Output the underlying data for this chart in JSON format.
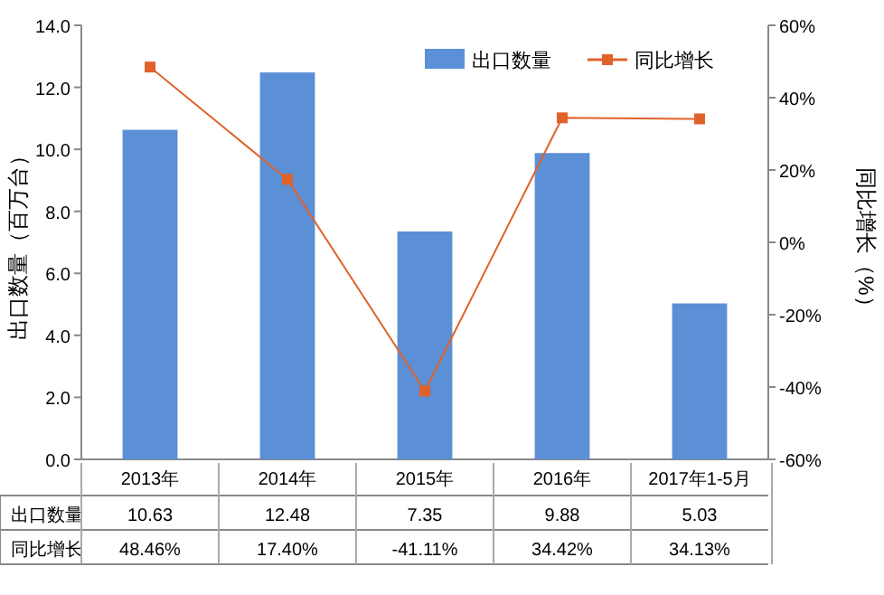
{
  "chart_data": {
    "type": "bar",
    "categories": [
      "2013年",
      "2014年",
      "2015年",
      "2016年",
      "2017年1-5月"
    ],
    "ylabel": "出口数量（百万台）",
    "y2label": "同比增长（%）",
    "ylim": [
      0,
      14
    ],
    "yticks": [
      {
        "value": 0,
        "label": "0.0"
      },
      {
        "value": 2,
        "label": "2.0"
      },
      {
        "value": 4,
        "label": "4.0"
      },
      {
        "value": 6,
        "label": "6.0"
      },
      {
        "value": 8,
        "label": "8.0"
      },
      {
        "value": 10,
        "label": "10.0"
      },
      {
        "value": 12,
        "label": "12.0"
      },
      {
        "value": 14,
        "label": "14.0"
      }
    ],
    "y2lim": [
      -60,
      60
    ],
    "y2ticks": [
      {
        "value": -60,
        "label": "-60%"
      },
      {
        "value": -40,
        "label": "-40%"
      },
      {
        "value": -20,
        "label": "-20%"
      },
      {
        "value": 0,
        "label": "0%"
      },
      {
        "value": 20,
        "label": "20%"
      },
      {
        "value": 40,
        "label": "40%"
      },
      {
        "value": 60,
        "label": "60%"
      }
    ],
    "legend": "top right",
    "grid": false,
    "series": [
      {
        "name": "出口数量",
        "color": "#5b8fd6",
        "values": [
          10.63,
          12.48,
          7.35,
          9.88,
          5.03
        ],
        "value_labels": [
          "10.63",
          "12.48",
          "7.35",
          "9.88",
          "5.03"
        ]
      },
      {
        "name": "同比增长",
        "type": "line",
        "axis": "y2",
        "color": "#e0622a",
        "marker": "square",
        "line_style": "solid",
        "values": [
          48.46,
          17.4,
          -41.11,
          34.42,
          34.13
        ],
        "value_labels": [
          "48.46%",
          "17.40%",
          "-41.11%",
          "34.42%",
          "34.13%"
        ]
      }
    ]
  }
}
